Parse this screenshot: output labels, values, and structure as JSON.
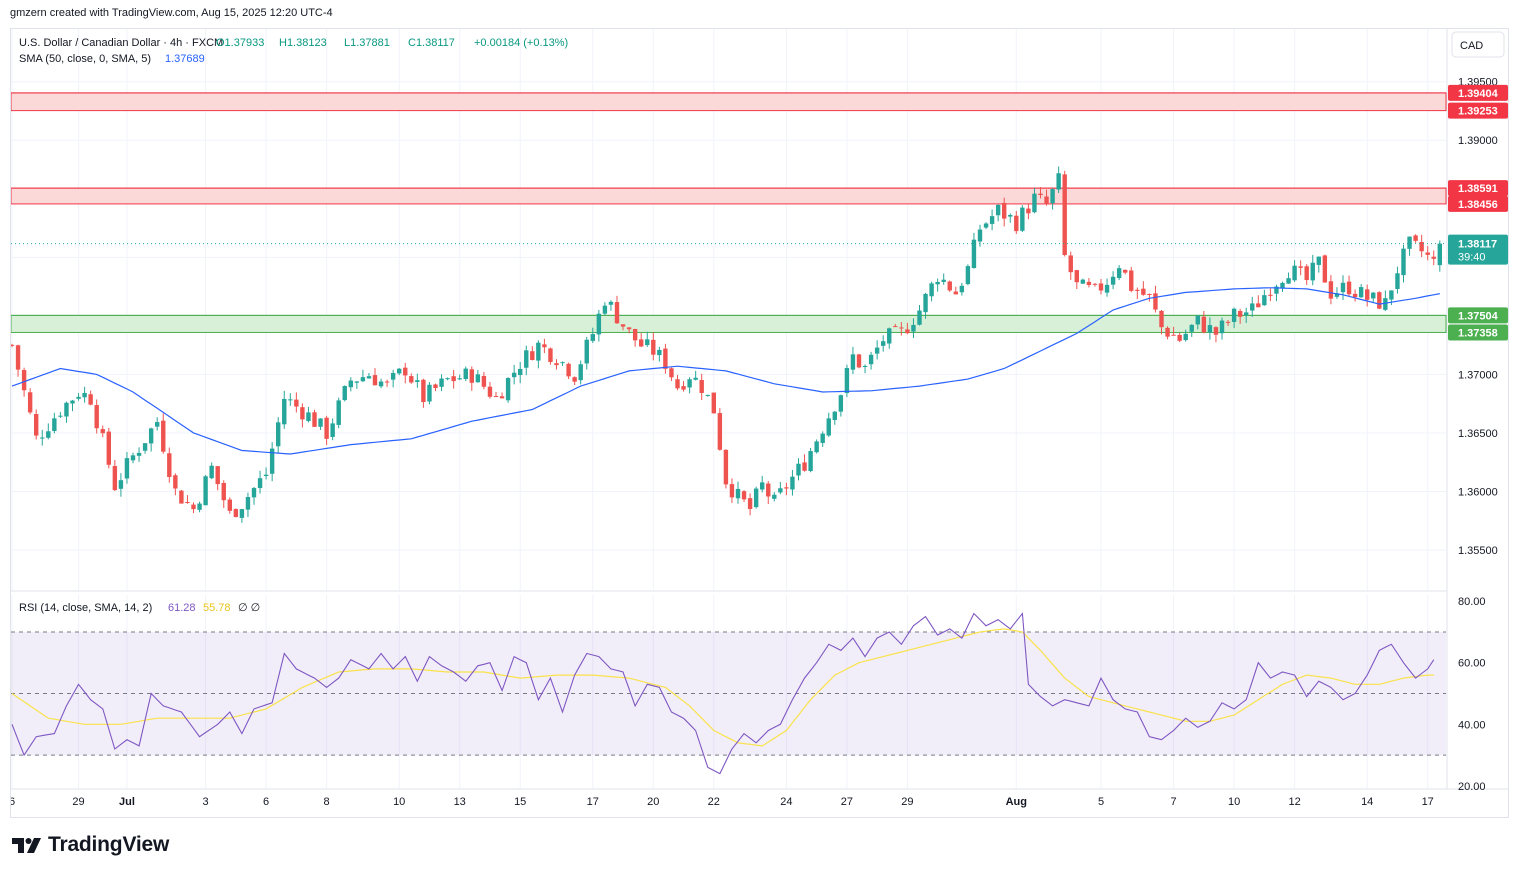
{
  "header": {
    "created_by": "gmzern created with TradingView.com, Aug 15, 2025 12:20 UTC-4"
  },
  "legend": {
    "symbol": "U.S. Dollar / Canadian Dollar · 4h · FXCM",
    "open": "O1.37933",
    "high": "H1.38123",
    "low": "L1.37881",
    "close": "C1.38117",
    "change": "+0.00184 (+0.13%)",
    "sma_label": "SMA (50, close, 0, SMA, 5)",
    "sma_value": "1.37689",
    "rsi_label": "RSI (14, close, SMA, 14, 2)",
    "rsi_value": "61.28",
    "rsi_sma_value": "55.78",
    "rsi_extra": "∅ ∅"
  },
  "currency_button": "CAD",
  "price_tag": {
    "price": "1.38117",
    "countdown": "39:40"
  },
  "brand": {
    "name": "TradingView"
  },
  "colors": {
    "up": "#26a69a",
    "down": "#ef5350",
    "sma": "#2962ff",
    "rsi": "#7e57c2",
    "rsi_sma": "#f9e24b",
    "resistance_zone": "#fbd9d9",
    "support_zone": "#d7f0d7"
  },
  "chart_data": {
    "type": "candlestick",
    "symbol": "USD/CAD",
    "timeframe": "4h",
    "price_axis": {
      "ticks": [
        1.355,
        1.36,
        1.365,
        1.37,
        1.375,
        1.38,
        1.385,
        1.39,
        1.395
      ],
      "tick_labels": [
        "1.35500",
        "1.36000",
        "1.36500",
        "1.37000",
        "1.37500",
        "1.38000",
        "1.38500",
        "1.39000",
        "1.39500"
      ],
      "range": [
        1.3515,
        1.3995
      ]
    },
    "rsi_axis": {
      "ticks": [
        20,
        40,
        60,
        80
      ],
      "tick_labels": [
        "20.00",
        "40.00",
        "60.00",
        "80.00"
      ],
      "range": [
        19,
        82
      ],
      "bands": [
        30,
        50,
        70
      ]
    },
    "time_axis": {
      "ticks": [
        {
          "label": "6",
          "bar": 0
        },
        {
          "label": "29",
          "bar": 11
        },
        {
          "label": "Jul",
          "bar": 19
        },
        {
          "label": "3",
          "bar": 32
        },
        {
          "label": "6",
          "bar": 42
        },
        {
          "label": "8",
          "bar": 52
        },
        {
          "label": "10",
          "bar": 64
        },
        {
          "label": "13",
          "bar": 74
        },
        {
          "label": "15",
          "bar": 84
        },
        {
          "label": "17",
          "bar": 96
        },
        {
          "label": "20",
          "bar": 106
        },
        {
          "label": "22",
          "bar": 116
        },
        {
          "label": "24",
          "bar": 128
        },
        {
          "label": "27",
          "bar": 138
        },
        {
          "label": "29",
          "bar": 148
        },
        {
          "label": "Aug",
          "bar": 166
        },
        {
          "label": "5",
          "bar": 180
        },
        {
          "label": "7",
          "bar": 192
        },
        {
          "label": "10",
          "bar": 202
        },
        {
          "label": "12",
          "bar": 212
        },
        {
          "label": "14",
          "bar": 224
        },
        {
          "label": "17",
          "bar": 234
        }
      ]
    },
    "zones": [
      {
        "kind": "resistance",
        "top": 1.39404,
        "bottom": 1.39253,
        "top_label": "1.39404",
        "bottom_label": "1.39253"
      },
      {
        "kind": "resistance",
        "top": 1.38591,
        "bottom": 1.38456,
        "top_label": "1.38591",
        "bottom_label": "1.38456"
      },
      {
        "kind": "support",
        "top": 1.37504,
        "bottom": 1.37358,
        "top_label": "1.37504",
        "bottom_label": "1.37358"
      }
    ],
    "last_price": 1.38117,
    "anchors": [
      [
        0,
        1.3725
      ],
      [
        4,
        1.3645
      ],
      [
        8,
        1.367
      ],
      [
        11,
        1.3685
      ],
      [
        13,
        1.368
      ],
      [
        17,
        1.3605
      ],
      [
        20,
        1.363
      ],
      [
        24,
        1.366
      ],
      [
        27,
        1.36
      ],
      [
        30,
        1.3585
      ],
      [
        33,
        1.362
      ],
      [
        36,
        1.358
      ],
      [
        38,
        1.359
      ],
      [
        42,
        1.3615
      ],
      [
        45,
        1.368
      ],
      [
        49,
        1.3665
      ],
      [
        52,
        1.365
      ],
      [
        56,
        1.3695
      ],
      [
        59,
        1.37
      ],
      [
        62,
        1.369
      ],
      [
        65,
        1.3705
      ],
      [
        68,
        1.368
      ],
      [
        72,
        1.3695
      ],
      [
        76,
        1.37
      ],
      [
        80,
        1.368
      ],
      [
        84,
        1.371
      ],
      [
        87,
        1.3725
      ],
      [
        90,
        1.3715
      ],
      [
        93,
        1.37
      ],
      [
        96,
        1.3735
      ],
      [
        98,
        1.3765
      ],
      [
        100,
        1.375
      ],
      [
        102,
        1.3735
      ],
      [
        104,
        1.3725
      ],
      [
        106,
        1.372
      ],
      [
        108,
        1.371
      ],
      [
        110,
        1.369
      ],
      [
        112,
        1.37
      ],
      [
        114,
        1.369
      ],
      [
        116,
        1.367
      ],
      [
        118,
        1.361
      ],
      [
        120,
        1.3595
      ],
      [
        122,
        1.3585
      ],
      [
        124,
        1.3605
      ],
      [
        126,
        1.359
      ],
      [
        128,
        1.3605
      ],
      [
        131,
        1.3625
      ],
      [
        134,
        1.3655
      ],
      [
        137,
        1.3685
      ],
      [
        139,
        1.3715
      ],
      [
        141,
        1.3705
      ],
      [
        144,
        1.373
      ],
      [
        147,
        1.3735
      ],
      [
        150,
        1.3755
      ],
      [
        153,
        1.3785
      ],
      [
        156,
        1.377
      ],
      [
        158,
        1.379
      ],
      [
        160,
        1.3825
      ],
      [
        163,
        1.384
      ],
      [
        166,
        1.383
      ],
      [
        169,
        1.385
      ],
      [
        171,
        1.3845
      ],
      [
        173,
        1.3865
      ],
      [
        174,
        1.38
      ],
      [
        176,
        1.3775
      ],
      [
        179,
        1.377
      ],
      [
        181,
        1.378
      ],
      [
        183,
        1.3795
      ],
      [
        185,
        1.3775
      ],
      [
        188,
        1.3765
      ],
      [
        190,
        1.374
      ],
      [
        193,
        1.373
      ],
      [
        196,
        1.3745
      ],
      [
        199,
        1.3735
      ],
      [
        202,
        1.375
      ],
      [
        205,
        1.3755
      ],
      [
        208,
        1.3775
      ],
      [
        211,
        1.379
      ],
      [
        214,
        1.378
      ],
      [
        216,
        1.3795
      ],
      [
        218,
        1.377
      ],
      [
        221,
        1.3775
      ],
      [
        224,
        1.3765
      ],
      [
        227,
        1.376
      ],
      [
        229,
        1.379
      ],
      [
        231,
        1.381
      ],
      [
        233,
        1.3805
      ],
      [
        235,
        1.3795
      ],
      [
        236,
        1.3812
      ]
    ],
    "sma_anchors": [
      [
        0,
        1.369
      ],
      [
        8,
        1.3705
      ],
      [
        14,
        1.37
      ],
      [
        20,
        1.3685
      ],
      [
        30,
        1.365
      ],
      [
        38,
        1.3635
      ],
      [
        46,
        1.3632
      ],
      [
        56,
        1.364
      ],
      [
        66,
        1.3645
      ],
      [
        76,
        1.366
      ],
      [
        86,
        1.367
      ],
      [
        94,
        1.369
      ],
      [
        102,
        1.3703
      ],
      [
        110,
        1.3707
      ],
      [
        118,
        1.3703
      ],
      [
        126,
        1.3692
      ],
      [
        134,
        1.3685
      ],
      [
        142,
        1.3686
      ],
      [
        150,
        1.369
      ],
      [
        158,
        1.3696
      ],
      [
        164,
        1.3705
      ],
      [
        170,
        1.372
      ],
      [
        176,
        1.3735
      ],
      [
        182,
        1.3755
      ],
      [
        188,
        1.3765
      ],
      [
        194,
        1.377
      ],
      [
        202,
        1.3773
      ],
      [
        208,
        1.3774
      ],
      [
        214,
        1.3773
      ],
      [
        220,
        1.3768
      ],
      [
        226,
        1.376
      ],
      [
        232,
        1.3765
      ],
      [
        236,
        1.3769
      ]
    ],
    "rsi_anchors": [
      [
        0,
        40
      ],
      [
        2,
        30
      ],
      [
        4,
        36
      ],
      [
        7,
        37
      ],
      [
        9,
        46
      ],
      [
        11,
        53
      ],
      [
        13,
        48
      ],
      [
        15,
        45
      ],
      [
        17,
        32
      ],
      [
        19,
        35
      ],
      [
        21,
        33
      ],
      [
        23,
        50
      ],
      [
        25,
        46
      ],
      [
        28,
        44
      ],
      [
        31,
        36
      ],
      [
        34,
        40
      ],
      [
        36,
        44
      ],
      [
        38,
        37
      ],
      [
        40,
        45
      ],
      [
        43,
        47
      ],
      [
        45,
        63
      ],
      [
        47,
        58
      ],
      [
        50,
        55
      ],
      [
        52,
        52
      ],
      [
        54,
        55
      ],
      [
        56,
        61
      ],
      [
        59,
        58
      ],
      [
        61,
        63
      ],
      [
        63,
        58
      ],
      [
        65,
        62
      ],
      [
        67,
        54
      ],
      [
        69,
        62
      ],
      [
        71,
        59
      ],
      [
        73,
        57
      ],
      [
        75,
        54
      ],
      [
        77,
        59
      ],
      [
        79,
        60
      ],
      [
        81,
        51
      ],
      [
        83,
        62
      ],
      [
        85,
        60
      ],
      [
        87,
        48
      ],
      [
        89,
        55
      ],
      [
        91,
        44
      ],
      [
        93,
        56
      ],
      [
        95,
        63
      ],
      [
        97,
        62
      ],
      [
        99,
        58
      ],
      [
        101,
        57
      ],
      [
        103,
        46
      ],
      [
        105,
        53
      ],
      [
        107,
        52
      ],
      [
        109,
        44
      ],
      [
        111,
        42
      ],
      [
        113,
        38
      ],
      [
        115,
        26
      ],
      [
        117,
        24
      ],
      [
        119,
        32
      ],
      [
        121,
        37
      ],
      [
        123,
        34
      ],
      [
        125,
        38
      ],
      [
        127,
        40
      ],
      [
        129,
        48
      ],
      [
        131,
        55
      ],
      [
        133,
        60
      ],
      [
        135,
        66
      ],
      [
        137,
        64
      ],
      [
        139,
        68
      ],
      [
        141,
        62
      ],
      [
        143,
        68
      ],
      [
        145,
        70
      ],
      [
        147,
        66
      ],
      [
        149,
        72
      ],
      [
        151,
        75
      ],
      [
        153,
        69
      ],
      [
        155,
        71
      ],
      [
        157,
        68
      ],
      [
        159,
        76
      ],
      [
        161,
        72
      ],
      [
        163,
        74
      ],
      [
        165,
        71
      ],
      [
        167,
        76
      ],
      [
        168,
        53
      ],
      [
        170,
        49
      ],
      [
        172,
        46
      ],
      [
        174,
        48
      ],
      [
        176,
        47
      ],
      [
        178,
        46
      ],
      [
        180,
        55
      ],
      [
        182,
        48
      ],
      [
        184,
        45
      ],
      [
        186,
        44
      ],
      [
        188,
        36
      ],
      [
        190,
        35
      ],
      [
        192,
        38
      ],
      [
        194,
        42
      ],
      [
        196,
        39
      ],
      [
        198,
        41
      ],
      [
        200,
        47
      ],
      [
        202,
        45
      ],
      [
        204,
        48
      ],
      [
        206,
        60
      ],
      [
        208,
        55
      ],
      [
        210,
        57
      ],
      [
        212,
        56
      ],
      [
        214,
        49
      ],
      [
        216,
        54
      ],
      [
        218,
        52
      ],
      [
        220,
        48
      ],
      [
        222,
        50
      ],
      [
        224,
        56
      ],
      [
        226,
        64
      ],
      [
        228,
        66
      ],
      [
        230,
        60
      ],
      [
        232,
        55
      ],
      [
        234,
        58
      ],
      [
        235,
        61
      ]
    ],
    "rsi_sma_anchors": [
      [
        0,
        50
      ],
      [
        6,
        42
      ],
      [
        12,
        40
      ],
      [
        18,
        40
      ],
      [
        24,
        42
      ],
      [
        30,
        42
      ],
      [
        36,
        42
      ],
      [
        42,
        45
      ],
      [
        48,
        52
      ],
      [
        54,
        57
      ],
      [
        60,
        58
      ],
      [
        66,
        58
      ],
      [
        72,
        57
      ],
      [
        78,
        57
      ],
      [
        84,
        55
      ],
      [
        90,
        56
      ],
      [
        96,
        56
      ],
      [
        102,
        55
      ],
      [
        108,
        52
      ],
      [
        112,
        46
      ],
      [
        116,
        38
      ],
      [
        120,
        34
      ],
      [
        124,
        33
      ],
      [
        128,
        38
      ],
      [
        132,
        48
      ],
      [
        136,
        56
      ],
      [
        140,
        60
      ],
      [
        144,
        62
      ],
      [
        148,
        64
      ],
      [
        152,
        66
      ],
      [
        156,
        68
      ],
      [
        160,
        70
      ],
      [
        164,
        71
      ],
      [
        167,
        70
      ],
      [
        170,
        64
      ],
      [
        174,
        55
      ],
      [
        178,
        49
      ],
      [
        182,
        47
      ],
      [
        186,
        45
      ],
      [
        190,
        43
      ],
      [
        194,
        41
      ],
      [
        198,
        41
      ],
      [
        202,
        43
      ],
      [
        206,
        48
      ],
      [
        210,
        53
      ],
      [
        214,
        56
      ],
      [
        218,
        55
      ],
      [
        222,
        53
      ],
      [
        226,
        53
      ],
      [
        230,
        55
      ],
      [
        234,
        56
      ],
      [
        235,
        56
      ]
    ]
  }
}
